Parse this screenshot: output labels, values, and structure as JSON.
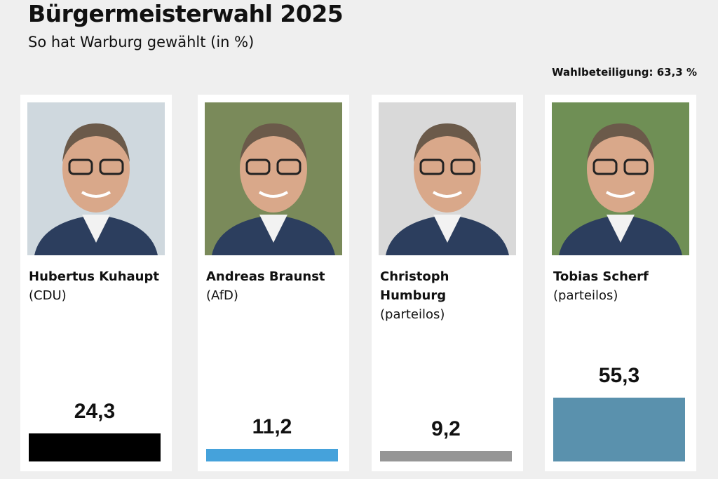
{
  "header": {
    "title": "Bürgermeisterwahl 2025",
    "subtitle": "So hat Warburg gewählt (in %)",
    "turnout": "Wahlbeteiligung: 63,3 %"
  },
  "chart_data": {
    "type": "bar",
    "title": "Bürgermeisterwahl 2025",
    "subtitle": "So hat Warburg gewählt (in %)",
    "unit": "%",
    "categories": [
      "Hubertus Kuhaupt",
      "Andreas Braunst",
      "Christoph Humburg",
      "Tobias Scherf"
    ],
    "values": [
      24.3,
      11.2,
      9.2,
      55.3
    ],
    "labels": [
      "24,3",
      "11,2",
      "9,2",
      "55,3"
    ],
    "colors": [
      "#000000",
      "#45a2db",
      "#969696",
      "#5a91ad"
    ],
    "candidates": [
      {
        "name_lines": [
          "Hubertus Kuhaupt"
        ],
        "party": "(CDU)"
      },
      {
        "name_lines": [
          "Andreas Braunst"
        ],
        "party": "(AfD)"
      },
      {
        "name_lines": [
          "Christoph",
          "Humburg"
        ],
        "party": "(parteilos)"
      },
      {
        "name_lines": [
          "Tobias Scherf"
        ],
        "party": "(parteilos)"
      }
    ]
  }
}
